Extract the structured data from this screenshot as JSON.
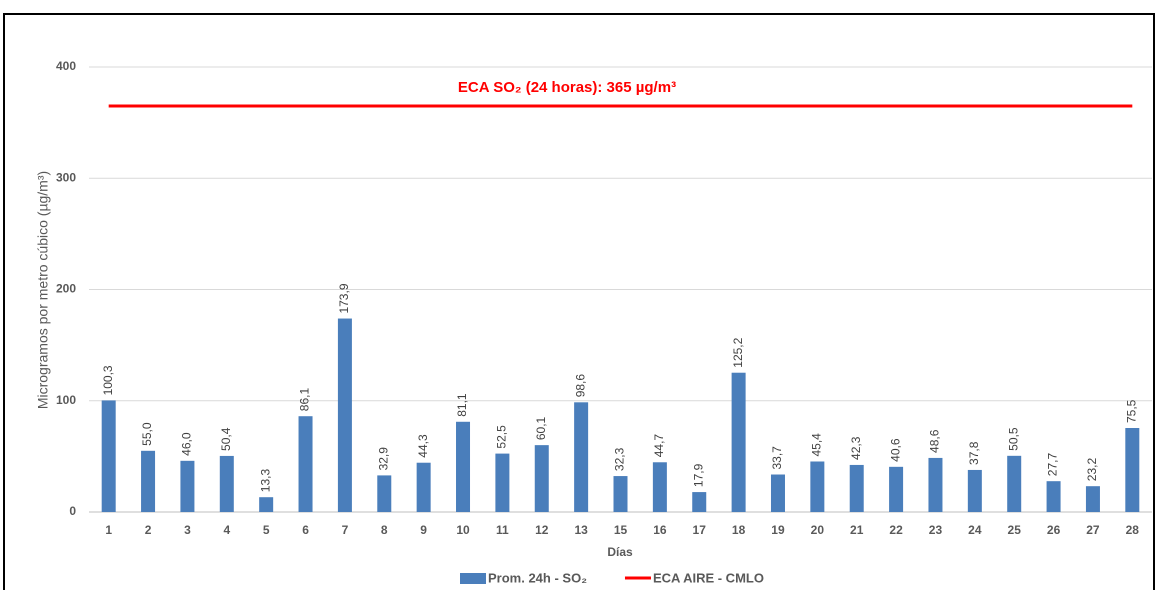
{
  "chart_data": {
    "type": "bar",
    "annotation": "ECA SO₂ (24 horas):  365 µg/m³",
    "y_label": "Microgramos por metro cúbico (µg/m³)",
    "x_label": "Días",
    "categories": [
      "1",
      "2",
      "3",
      "4",
      "5",
      "6",
      "7",
      "8",
      "9",
      "10",
      "11",
      "12",
      "13",
      "15",
      "16",
      "17",
      "18",
      "19",
      "20",
      "21",
      "22",
      "23",
      "24",
      "25",
      "26",
      "27",
      "28"
    ],
    "series": [
      {
        "name": "Prom. 24h - SO₂",
        "type": "bar",
        "color": "#4a7ebb",
        "values": [
          100.3,
          55.0,
          46.0,
          50.4,
          13.3,
          86.1,
          173.9,
          32.9,
          44.3,
          81.1,
          52.5,
          60.1,
          98.6,
          32.3,
          44.7,
          17.9,
          125.2,
          33.7,
          45.4,
          42.3,
          40.6,
          48.6,
          37.8,
          50.5,
          27.7,
          23.2,
          75.5
        ],
        "value_labels": [
          "100,3",
          "55,0",
          "46,0",
          "50,4",
          "13,3",
          "86,1",
          "173,9",
          "32,9",
          "44,3",
          "81,1",
          "52,5",
          "60,1",
          "98,6",
          "32,3",
          "44,7",
          "17,9",
          "125,2",
          "33,7",
          "45,4",
          "42,3",
          "40,6",
          "48,6",
          "37,8",
          "50,5",
          "27,7",
          "23,2",
          "75,5"
        ]
      },
      {
        "name": "ECA AIRE - CMLO",
        "type": "line",
        "color": "#ff0000",
        "values": [
          365,
          365,
          365,
          365,
          365,
          365,
          365,
          365,
          365,
          365,
          365,
          365,
          365,
          365,
          365,
          365,
          365,
          365,
          365,
          365,
          365,
          365,
          365,
          365,
          365,
          365,
          365
        ]
      }
    ],
    "ylim": [
      0,
      400
    ],
    "yticks": [
      0,
      100,
      200,
      300,
      400
    ],
    "grid": true
  }
}
